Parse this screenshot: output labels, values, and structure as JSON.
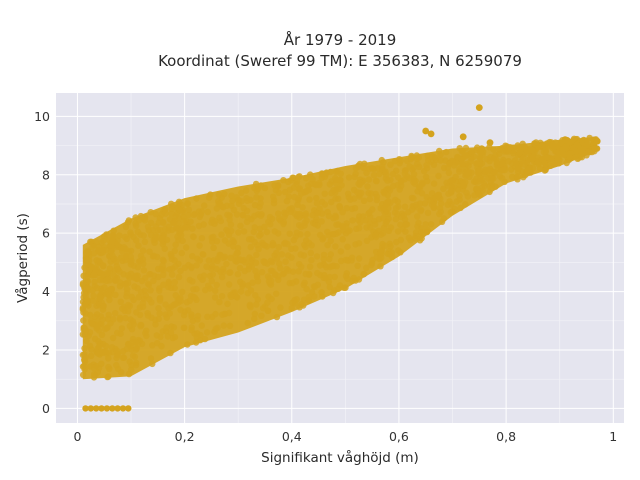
{
  "chart_data": {
    "type": "scatter",
    "title_lines": [
      "År 1979 - 2019",
      "Koordinat (Sweref 99 TM): E 356383, N 6259079"
    ],
    "xlabel": "Signifikant våghöjd (m)",
    "ylabel": "Vågperiod (s)",
    "xlim": [
      -0.04,
      1.02
    ],
    "ylim": [
      -0.5,
      10.8
    ],
    "x_ticks": [
      0,
      0.2,
      0.4,
      0.6,
      0.8,
      1
    ],
    "x_tick_labels": [
      "0",
      "0,2",
      "0,4",
      "0,6",
      "0,8",
      "1"
    ],
    "y_ticks": [
      0,
      2,
      4,
      6,
      8,
      10
    ],
    "y_tick_labels": [
      "0",
      "2",
      "4",
      "6",
      "8",
      "10"
    ],
    "grid": true,
    "marker_color": "#d4a31e",
    "background_color": "#e5e5ef",
    "point_band": {
      "lower_edge": [
        [
          0.01,
          1.0
        ],
        [
          0.1,
          1.1
        ],
        [
          0.2,
          2.1
        ],
        [
          0.3,
          2.6
        ],
        [
          0.4,
          3.3
        ],
        [
          0.5,
          4.1
        ],
        [
          0.6,
          5.2
        ],
        [
          0.7,
          6.6
        ],
        [
          0.8,
          7.7
        ],
        [
          0.9,
          8.3
        ],
        [
          0.97,
          8.8
        ]
      ],
      "upper_edge": [
        [
          0.01,
          5.6
        ],
        [
          0.1,
          6.5
        ],
        [
          0.2,
          7.2
        ],
        [
          0.3,
          7.6
        ],
        [
          0.4,
          7.9
        ],
        [
          0.5,
          8.3
        ],
        [
          0.6,
          8.6
        ],
        [
          0.7,
          8.9
        ],
        [
          0.8,
          9.0
        ],
        [
          0.9,
          9.2
        ],
        [
          0.97,
          9.3
        ]
      ]
    },
    "zero_points_x": [
      0.015,
      0.025,
      0.035,
      0.045,
      0.055,
      0.065,
      0.075,
      0.085,
      0.095
    ],
    "outliers": [
      [
        0.75,
        10.3
      ],
      [
        0.65,
        9.5
      ],
      [
        0.66,
        9.4
      ],
      [
        0.72,
        9.3
      ],
      [
        0.77,
        9.1
      ],
      [
        0.91,
        9.2
      ],
      [
        0.97,
        9.15
      ]
    ]
  }
}
